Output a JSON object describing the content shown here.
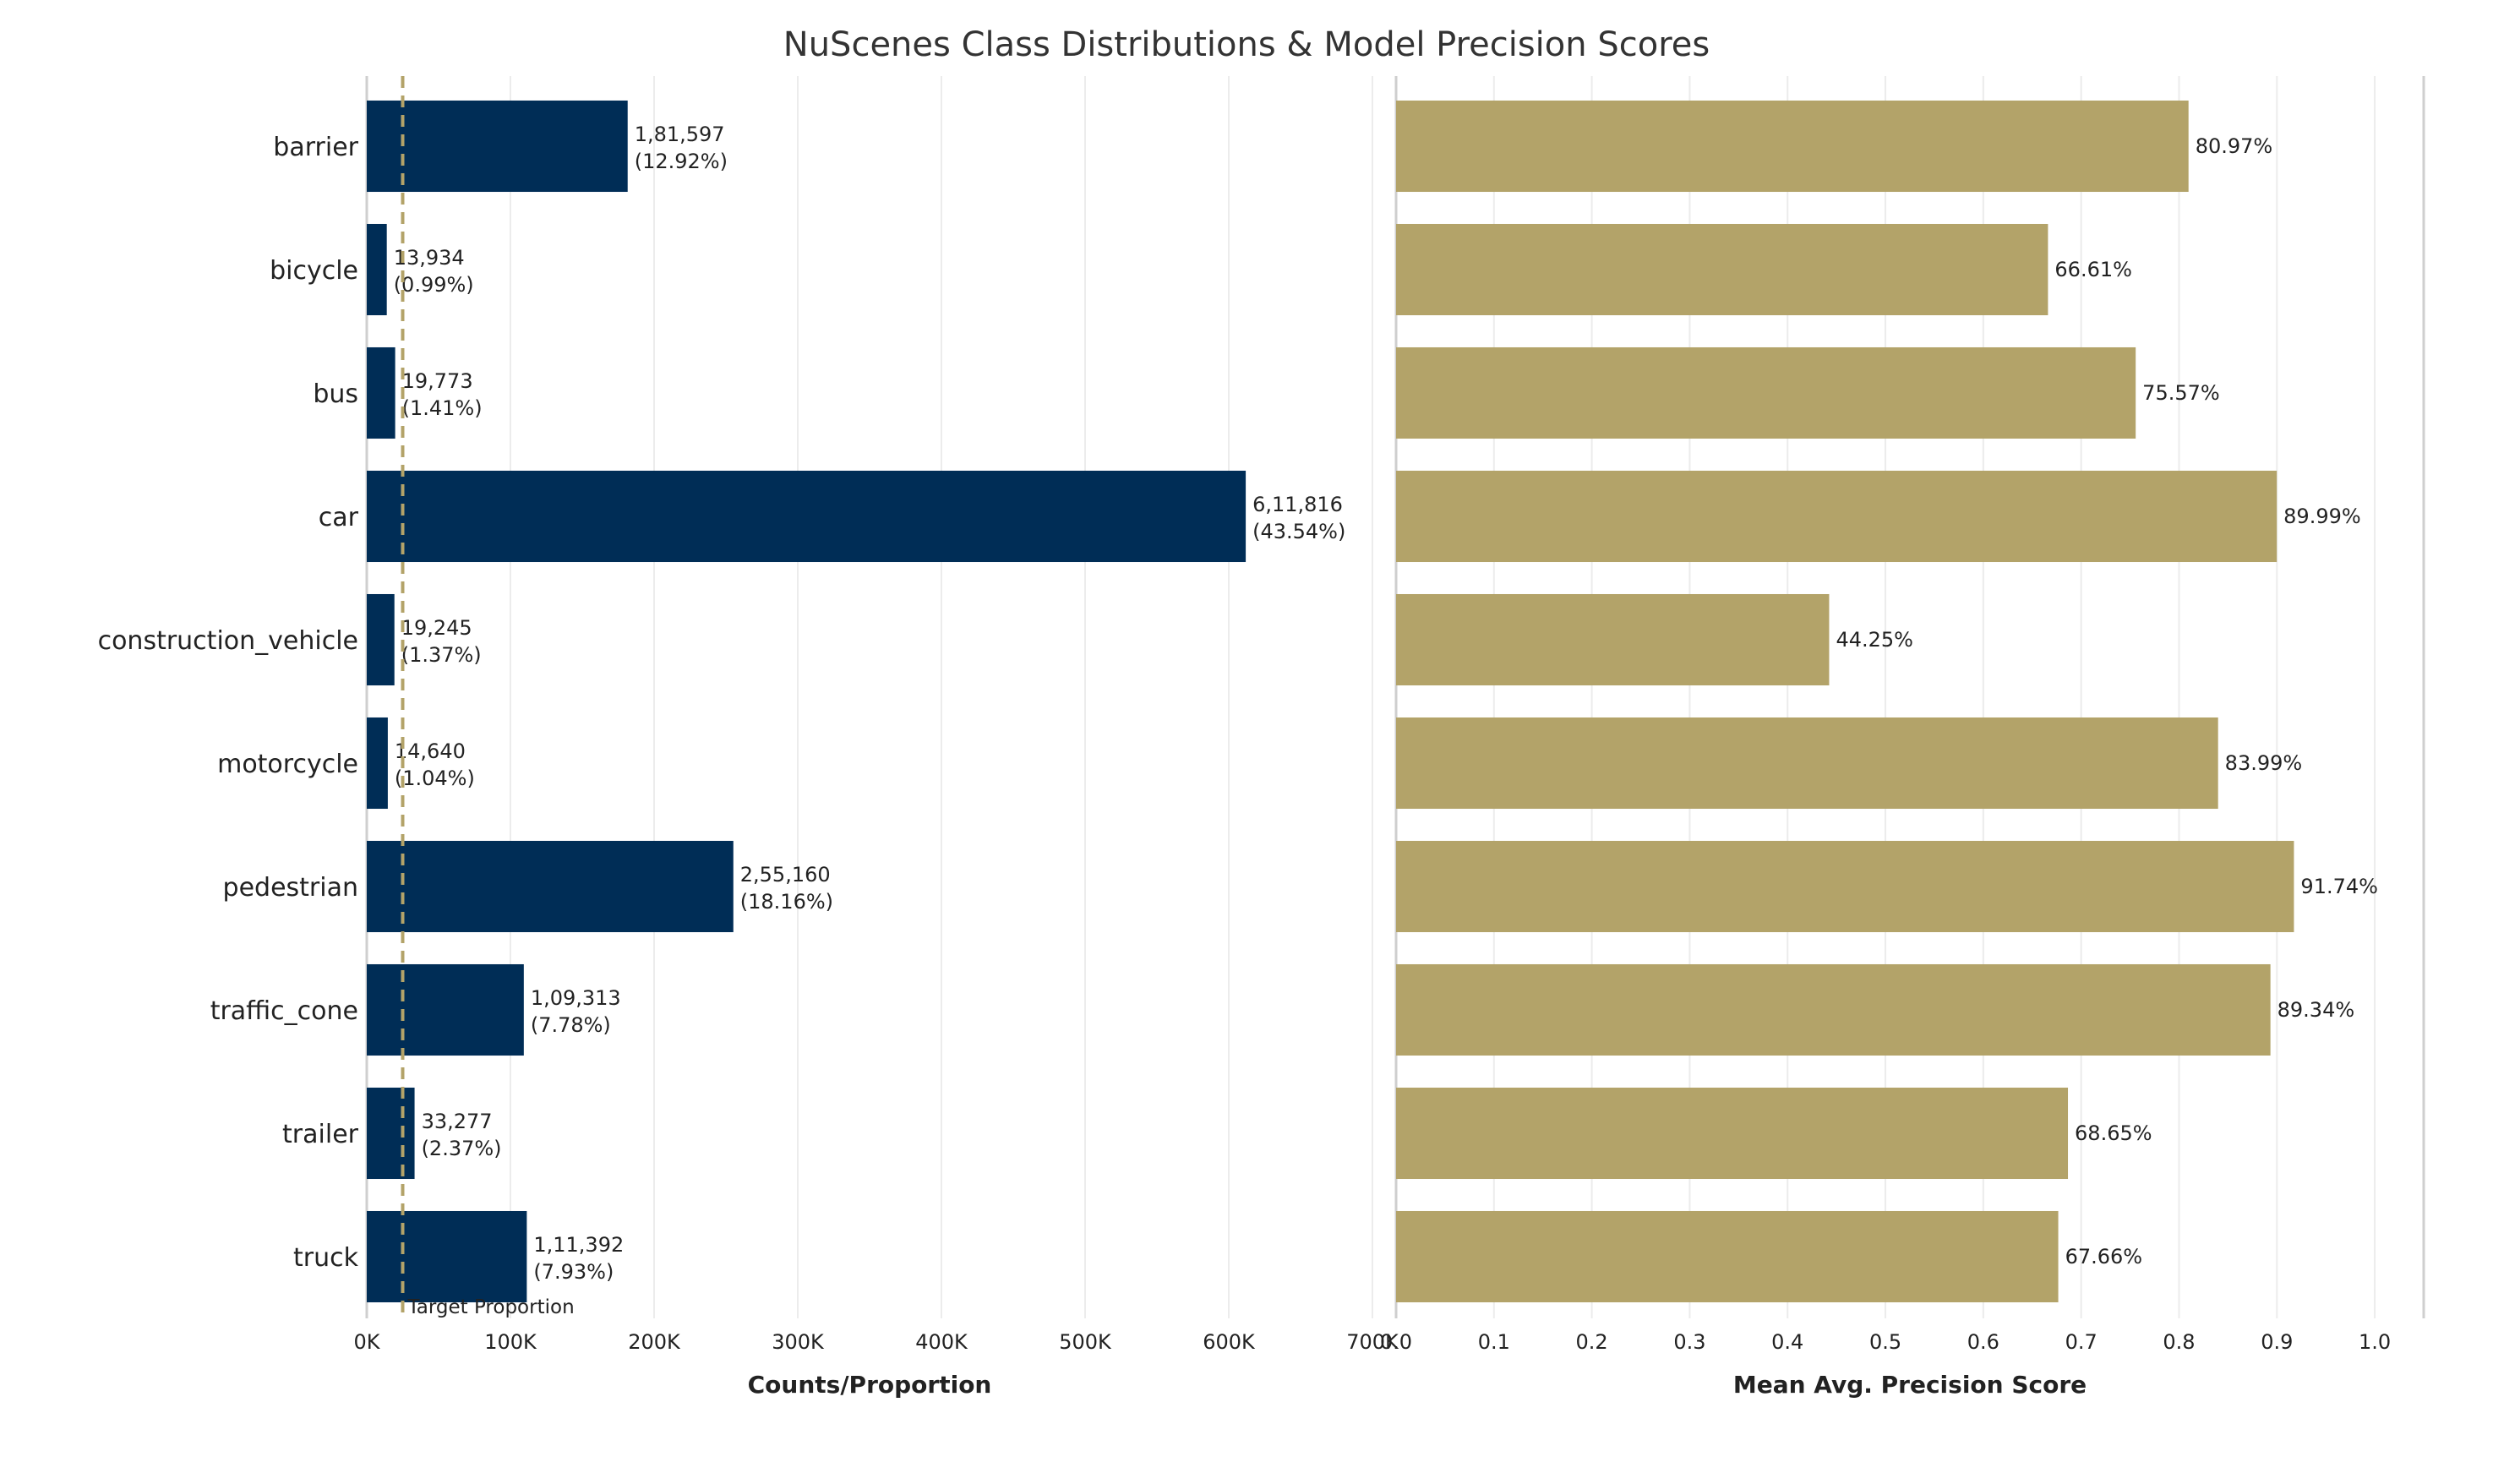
{
  "title": "NuScenes Class Distributions & Model Precision Scores",
  "colors": {
    "count_bar": "#002D56",
    "precision_bar": "#B3A369",
    "target_line": "#B3A369",
    "grid": "#ececec",
    "axis": "#cfcfcf",
    "text": "#222222"
  },
  "chart_data": [
    {
      "type": "bar",
      "orientation": "horizontal",
      "categories": [
        "barrier",
        "bicycle",
        "bus",
        "car",
        "construction_vehicle",
        "motorcycle",
        "pedestrian",
        "traffic_cone",
        "trailer",
        "truck"
      ],
      "values": [
        181597,
        13934,
        19773,
        611816,
        19245,
        14640,
        255160,
        109313,
        33277,
        111392
      ],
      "data_labels": [
        [
          "1,81,597",
          "(12.92%)"
        ],
        [
          "13,934",
          "(0.99%)"
        ],
        [
          "19,773",
          "(1.41%)"
        ],
        [
          "6,11,816",
          "(43.54%)"
        ],
        [
          "19,245",
          "(1.37%)"
        ],
        [
          "14,640",
          "(1.04%)"
        ],
        [
          "2,55,160",
          "(18.16%)"
        ],
        [
          "1,09,313",
          "(7.78%)"
        ],
        [
          "33,277",
          "(2.37%)"
        ],
        [
          "1,11,392",
          "(7.93%)"
        ]
      ],
      "xlabel": "Counts/Proportion",
      "xlim": [
        0,
        700000
      ],
      "xticks": [
        0,
        100000,
        200000,
        300000,
        400000,
        500000,
        600000,
        700000
      ],
      "xtick_labels": [
        "0K",
        "100K",
        "200K",
        "300K",
        "400K",
        "500K",
        "600K",
        "700K"
      ],
      "reference_line": {
        "label": "Target Proportion",
        "value": 25000
      },
      "grid": true
    },
    {
      "type": "bar",
      "orientation": "horizontal",
      "categories": [
        "barrier",
        "bicycle",
        "bus",
        "car",
        "construction_vehicle",
        "motorcycle",
        "pedestrian",
        "traffic_cone",
        "trailer",
        "truck"
      ],
      "values": [
        0.8097,
        0.6661,
        0.7557,
        0.8999,
        0.4425,
        0.8399,
        0.9174,
        0.8934,
        0.6865,
        0.6766
      ],
      "data_labels": [
        "80.97%",
        "66.61%",
        "75.57%",
        "89.99%",
        "44.25%",
        "83.99%",
        "91.74%",
        "89.34%",
        "68.65%",
        "67.66%"
      ],
      "xlabel": "Mean Avg. Precision Score",
      "xlim": [
        0,
        1.05
      ],
      "xticks": [
        0,
        0.1,
        0.2,
        0.3,
        0.4,
        0.5,
        0.6,
        0.7,
        0.8,
        0.9,
        1.0
      ],
      "xtick_labels": [
        "0.0",
        "0.1",
        "0.2",
        "0.3",
        "0.4",
        "0.5",
        "0.6",
        "0.7",
        "0.8",
        "0.9",
        "1.0"
      ],
      "grid": true
    }
  ]
}
